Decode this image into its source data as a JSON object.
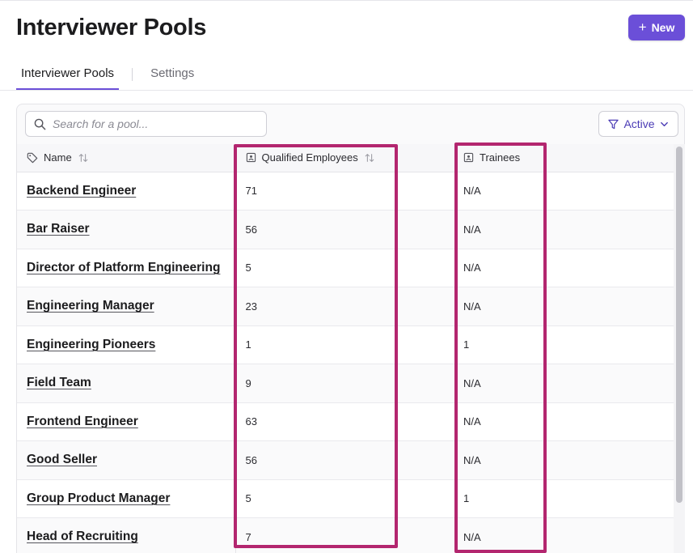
{
  "header": {
    "title": "Interviewer Pools",
    "new_button_label": "New"
  },
  "tabs": [
    {
      "label": "Interviewer Pools",
      "active": true
    },
    {
      "label": "Settings",
      "active": false
    }
  ],
  "search": {
    "placeholder": "Search for a pool...",
    "value": ""
  },
  "filter": {
    "label": "Active"
  },
  "table": {
    "columns": [
      {
        "label": "Name",
        "icon": "tag-icon",
        "sortable": true
      },
      {
        "label": "Qualified Employees",
        "icon": "id-badge-icon",
        "sortable": true
      },
      {
        "label": "Trainees",
        "icon": "id-badge-icon",
        "sortable": false
      }
    ],
    "rows": [
      {
        "name": "Backend Engineer",
        "qualified": "71",
        "trainees": "N/A"
      },
      {
        "name": "Bar Raiser",
        "qualified": "56",
        "trainees": "N/A"
      },
      {
        "name": "Director of Platform Engineering",
        "qualified": "5",
        "trainees": "N/A"
      },
      {
        "name": "Engineering Manager",
        "qualified": "23",
        "trainees": "N/A"
      },
      {
        "name": "Engineering Pioneers",
        "qualified": "1",
        "trainees": "1"
      },
      {
        "name": "Field Team",
        "qualified": "9",
        "trainees": "N/A"
      },
      {
        "name": "Frontend Engineer",
        "qualified": "63",
        "trainees": "N/A"
      },
      {
        "name": "Good Seller",
        "qualified": "56",
        "trainees": "N/A"
      },
      {
        "name": "Group Product Manager",
        "qualified": "5",
        "trainees": "1"
      },
      {
        "name": "Head of Recruiting",
        "qualified": "7",
        "trainees": "N/A"
      }
    ]
  },
  "colors": {
    "accent": "#6b4fd8",
    "highlight": "#b3266f"
  }
}
